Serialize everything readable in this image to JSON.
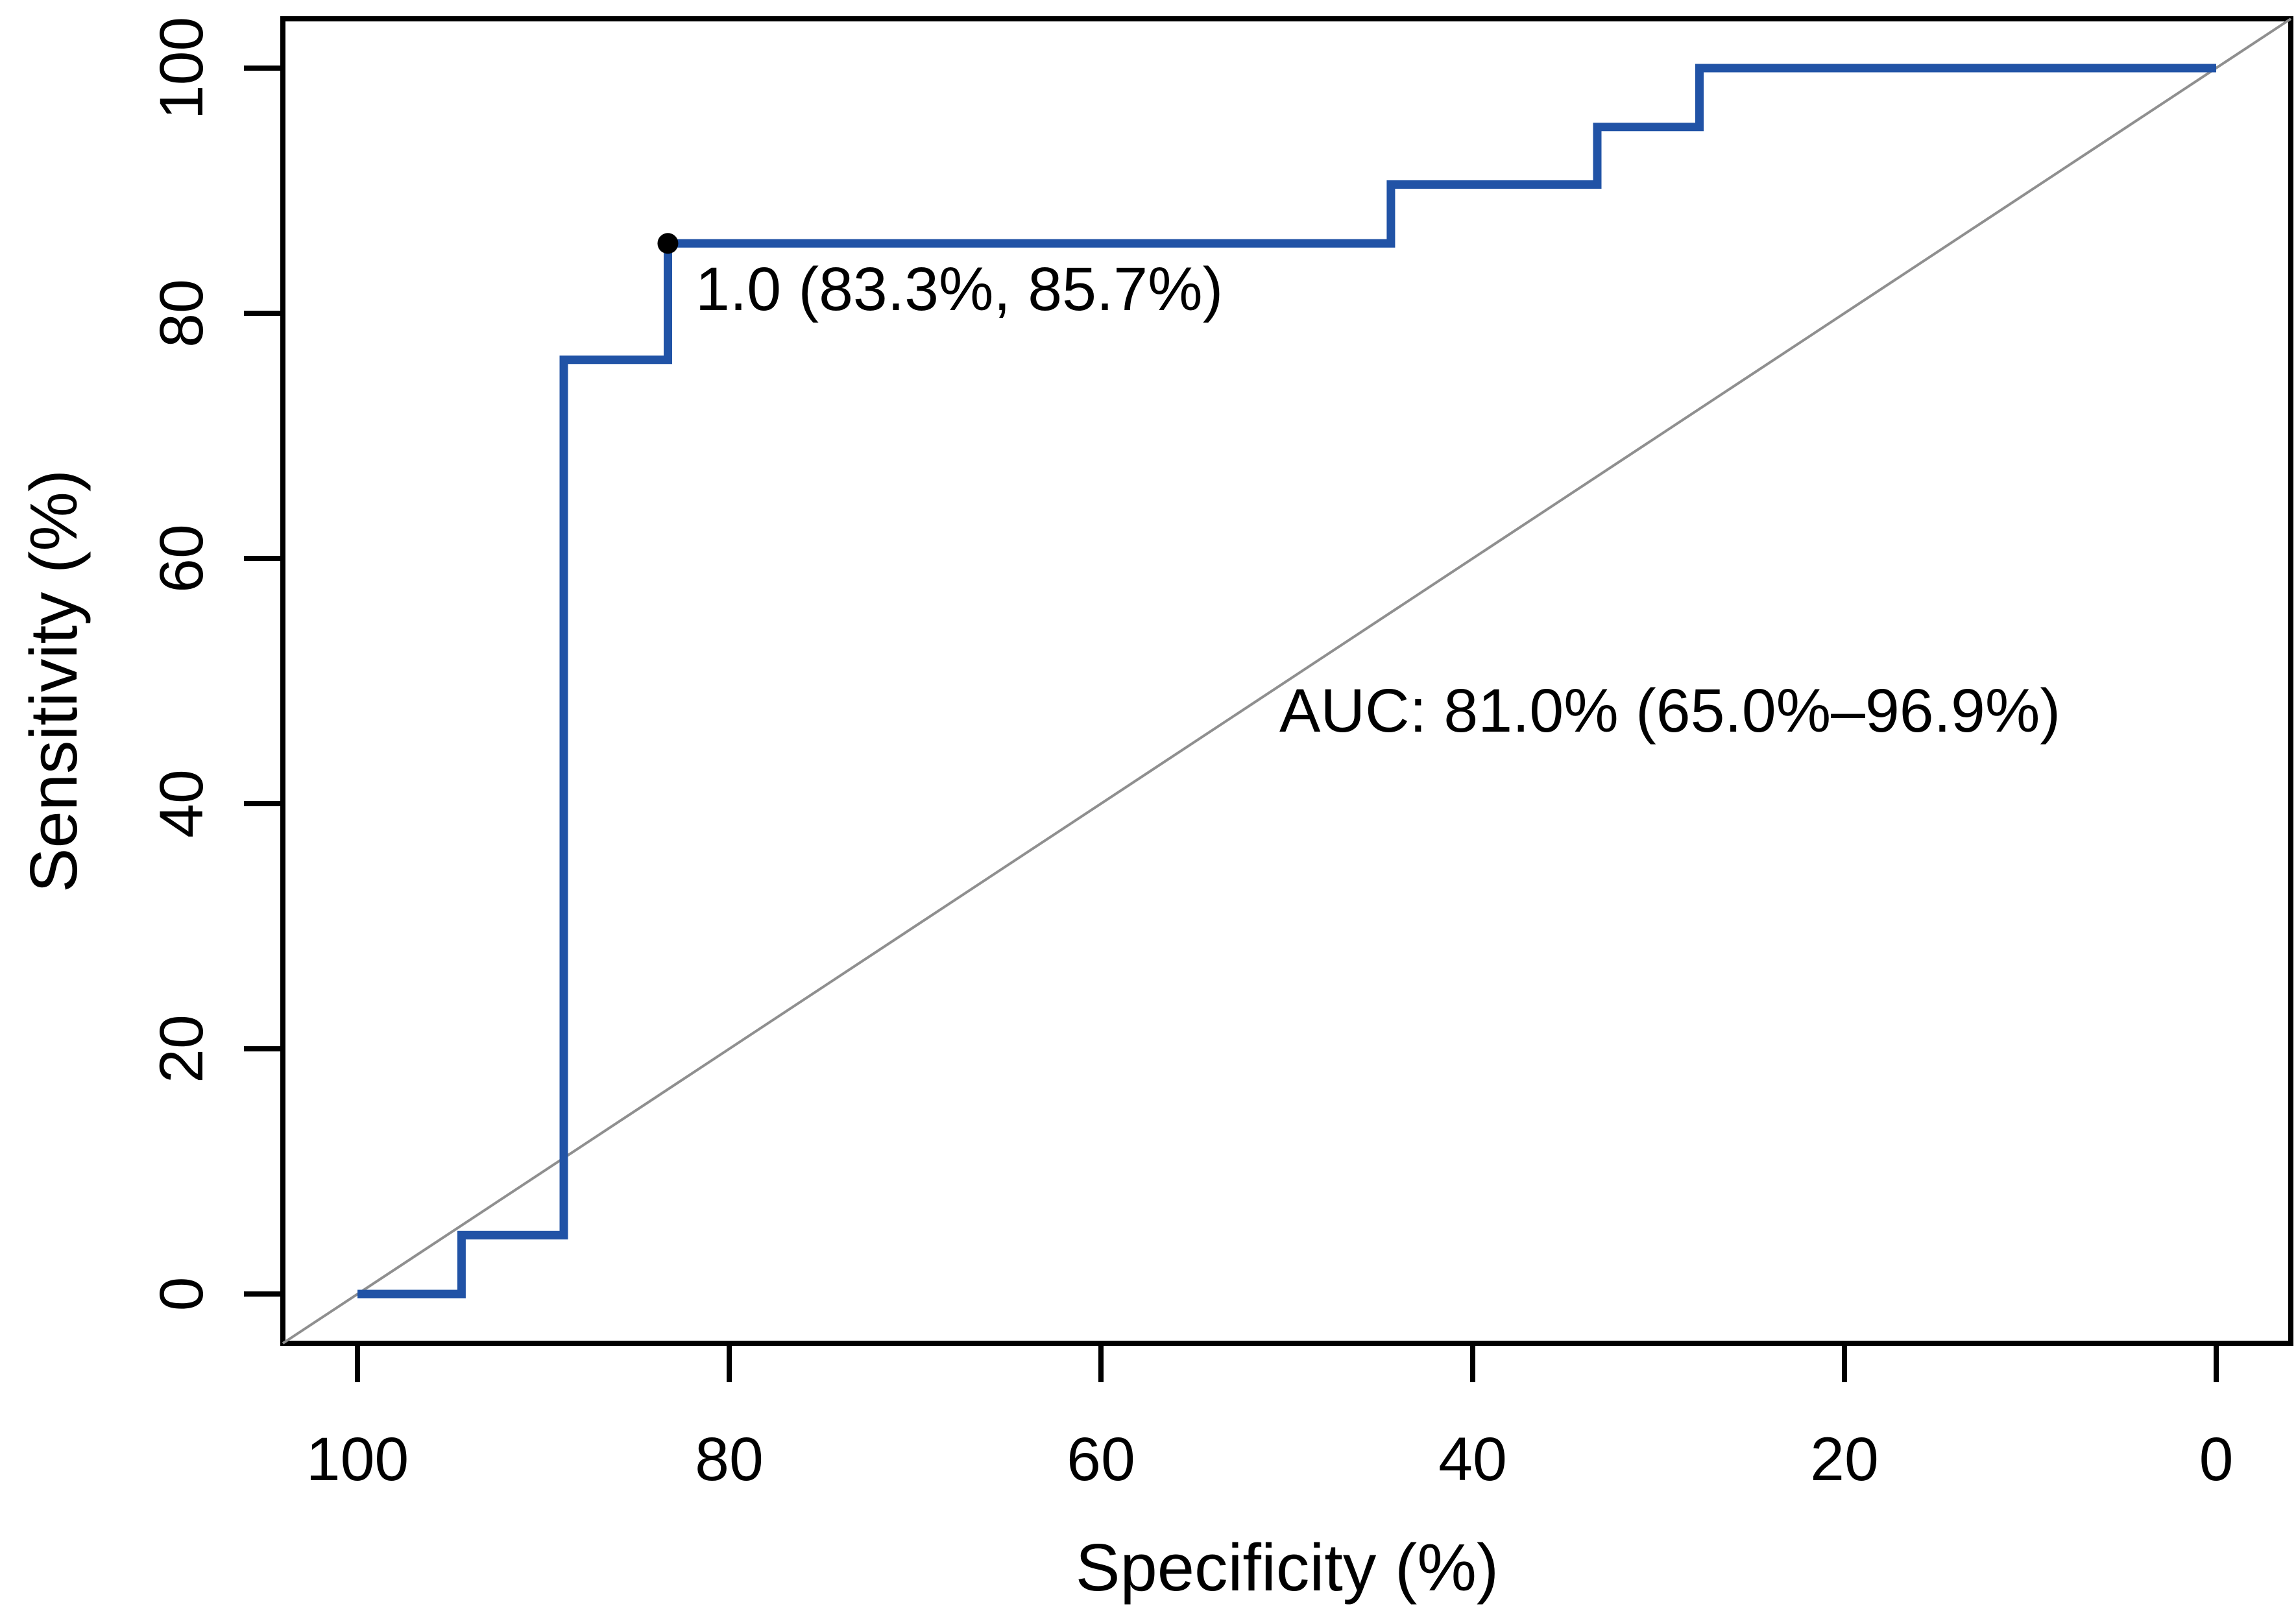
{
  "chart_data": {
    "type": "line",
    "subtype": "roc-step-curve",
    "title": "",
    "xlabel": "Specificity (%)",
    "ylabel": "Sensitivity (%)",
    "x_ticks": [
      100,
      80,
      60,
      40,
      20,
      0
    ],
    "y_ticks": [
      0,
      20,
      40,
      60,
      80,
      100
    ],
    "xlim": [
      100,
      0
    ],
    "ylim": [
      0,
      100
    ],
    "x_axis_reversed": true,
    "grid": false,
    "legend": "none",
    "roc_curve": {
      "name": "ROC curve",
      "points": [
        [
          100,
          0
        ],
        [
          94.4,
          0
        ],
        [
          94.4,
          4.8
        ],
        [
          88.9,
          4.8
        ],
        [
          88.9,
          76.2
        ],
        [
          83.3,
          76.2
        ],
        [
          83.3,
          85.7
        ],
        [
          44.4,
          85.7
        ],
        [
          44.4,
          90.5
        ],
        [
          33.3,
          90.5
        ],
        [
          33.3,
          95.2
        ],
        [
          27.8,
          95.2
        ],
        [
          27.8,
          100
        ],
        [
          0,
          100
        ]
      ],
      "color": "#2153a6",
      "line_width": 13
    },
    "diagonal_reference_line": {
      "name": "chance line",
      "from": [
        100,
        0
      ],
      "to": [
        0,
        100
      ],
      "color": "#8f8f8f"
    },
    "threshold_point": {
      "threshold": "1.0",
      "specificity": 83.3,
      "sensitivity": 85.7,
      "label": "1.0 (83.3%, 85.7%)",
      "marker_color": "#000000",
      "label_color": "#000000"
    },
    "auc_annotation": {
      "text": "AUC: 81.0% (65.0%–96.9%)",
      "auc": "81.0%",
      "ci_low": "65.0%",
      "ci_high": "96.9%",
      "color": "#2c52a8"
    },
    "axis_color": "#000000"
  }
}
